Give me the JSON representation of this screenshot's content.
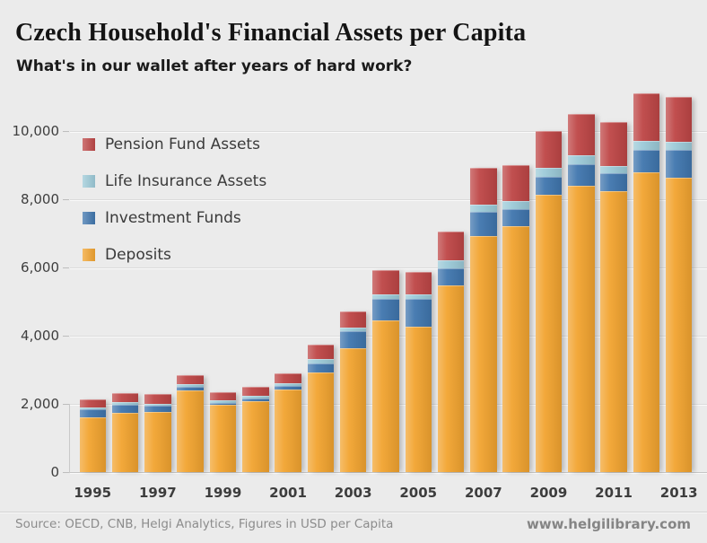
{
  "header": {
    "title": "Czech Household's Financial Assets per Capita",
    "subtitle": "What's in our wallet after years of hard work?"
  },
  "footer": {
    "source": "Source: OECD, CNB, Helgi Analytics, Figures in USD per Capita",
    "website": "www.helgilibrary.com"
  },
  "colors": {
    "background": "#ebebeb",
    "gridline": "#dbdbdb",
    "axis_text": "#3e3e3e",
    "deposits": "#f2a430",
    "investment_funds": "#4076ae",
    "life_insurance": "#9ccad8",
    "pension_funds": "#be4646"
  },
  "chart_data": {
    "type": "bar",
    "stacked": true,
    "title": "Czech Household's Financial Assets per Capita",
    "subtitle": "What's in our wallet after years of hard work?",
    "unit": "USD per capita",
    "categories": [
      1995,
      1996,
      1997,
      1998,
      1999,
      2000,
      2001,
      2002,
      2003,
      2004,
      2005,
      2006,
      2007,
      2008,
      2009,
      2010,
      2011,
      2012,
      2013
    ],
    "x_tick_labels": [
      "1995",
      "1997",
      "1999",
      "2001",
      "2003",
      "2005",
      "2007",
      "2009",
      "2011",
      "2013"
    ],
    "y_ticks": [
      0,
      2000,
      4000,
      6000,
      8000,
      10000
    ],
    "y_tick_labels": [
      "0",
      "2,000",
      "4,000",
      "6,000",
      "8,000",
      "10,000"
    ],
    "ylim": [
      0,
      11200
    ],
    "grid": true,
    "legend_position": "top-left",
    "legend_order": [
      "Pension Fund Assets",
      "Life Insurance Assets",
      "Investment Funds",
      "Deposits"
    ],
    "stack_order_bottom_to_top": [
      "Deposits",
      "Investment Funds",
      "Life Insurance Assets",
      "Pension Fund Assets"
    ],
    "series": [
      {
        "name": "Deposits",
        "color": "#f2a430",
        "values": [
          1610,
          1740,
          1760,
          2400,
          1980,
          2080,
          2420,
          2920,
          3640,
          4460,
          4260,
          5470,
          6910,
          7220,
          8130,
          8400,
          8230,
          8800,
          8630
        ]
      },
      {
        "name": "Investment Funds",
        "color": "#4076ae",
        "values": [
          240,
          240,
          180,
          90,
          60,
          90,
          120,
          260,
          480,
          620,
          820,
          500,
          720,
          480,
          540,
          630,
          530,
          660,
          810
        ]
      },
      {
        "name": "Life Insurance Assets",
        "color": "#9ccad8",
        "values": [
          50,
          70,
          70,
          90,
          70,
          70,
          70,
          130,
          110,
          130,
          120,
          230,
          210,
          240,
          250,
          250,
          220,
          240,
          250
        ]
      },
      {
        "name": "Pension Fund Assets",
        "color": "#be4646",
        "values": [
          240,
          280,
          280,
          260,
          240,
          260,
          290,
          440,
          480,
          720,
          660,
          850,
          1080,
          1050,
          1090,
          1230,
          1280,
          1410,
          1320
        ]
      }
    ]
  }
}
